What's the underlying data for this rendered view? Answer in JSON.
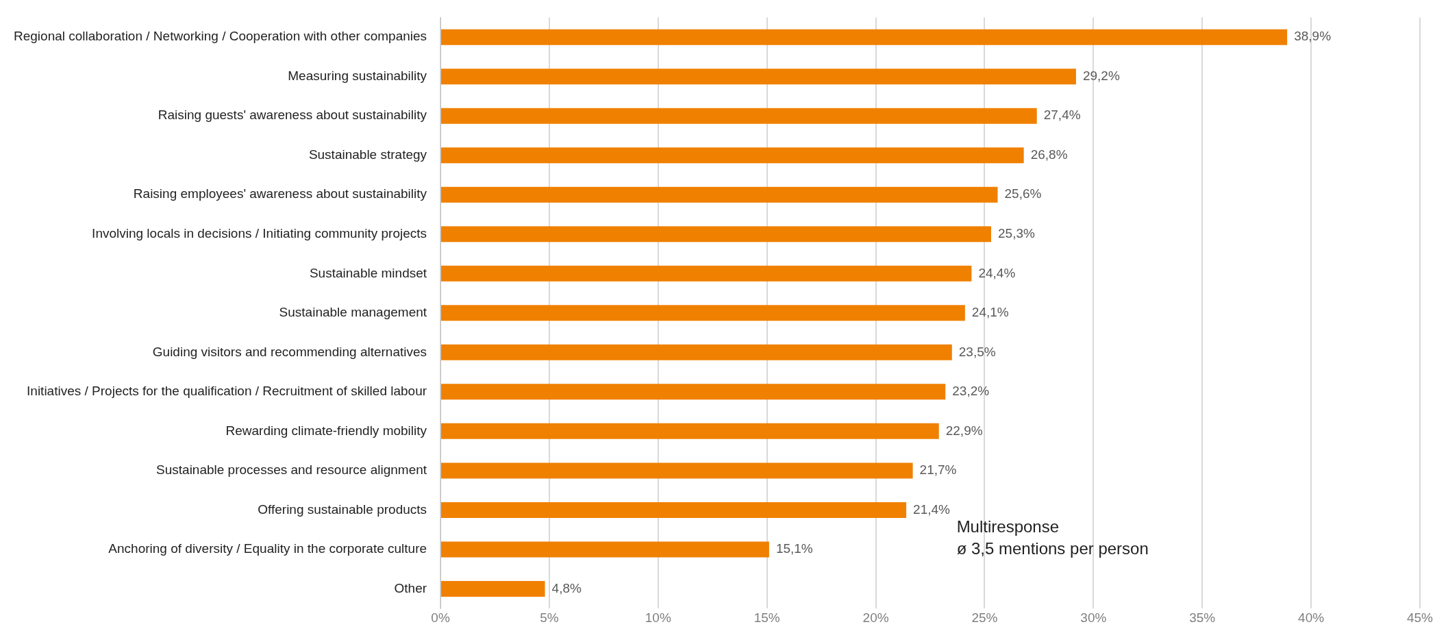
{
  "chart_data": {
    "type": "bar",
    "orientation": "horizontal",
    "categories": [
      "Regional collaboration / Networking / Cooperation with other companies",
      "Measuring sustainability",
      "Raising guests' awareness about sustainability",
      "Sustainable strategy",
      "Raising employees' awareness about sustainability",
      "Involving locals in decisions / Initiating community projects",
      "Sustainable mindset",
      "Sustainable management",
      "Guiding visitors and recommending alternatives",
      "Initiatives / Projects for the qualification / Recruitment of skilled labour",
      "Rewarding climate-friendly mobility",
      "Sustainable processes and resource alignment",
      "Offering sustainable products",
      "Anchoring of diversity / Equality in the corporate culture",
      "Other"
    ],
    "values": [
      38.9,
      29.2,
      27.4,
      26.8,
      25.6,
      25.3,
      24.4,
      24.1,
      23.5,
      23.2,
      22.9,
      21.7,
      21.4,
      15.1,
      4.8
    ],
    "value_labels": [
      "38,9%",
      "29,2%",
      "27,4%",
      "26,8%",
      "25,6%",
      "25,3%",
      "24,4%",
      "24,1%",
      "23,5%",
      "23,2%",
      "22,9%",
      "21,7%",
      "21,4%",
      "15,1%",
      "4,8%"
    ],
    "color": "#f08000",
    "xlim": [
      0,
      45
    ],
    "xticks": [
      {
        "value": 0,
        "label": "0%"
      },
      {
        "value": 5,
        "label": "5%"
      },
      {
        "value": 10,
        "label": "10%"
      },
      {
        "value": 15,
        "label": "15%"
      },
      {
        "value": 20,
        "label": "20%"
      },
      {
        "value": 25,
        "label": "25%"
      },
      {
        "value": 30,
        "label": "30%"
      },
      {
        "value": 35,
        "label": "35%"
      },
      {
        "value": 40,
        "label": "40%"
      },
      {
        "value": 45,
        "label": "45%"
      }
    ],
    "grid": "x",
    "legend": false,
    "annotations": [
      "Multiresponse\nø 3,5 mentions per person"
    ]
  }
}
